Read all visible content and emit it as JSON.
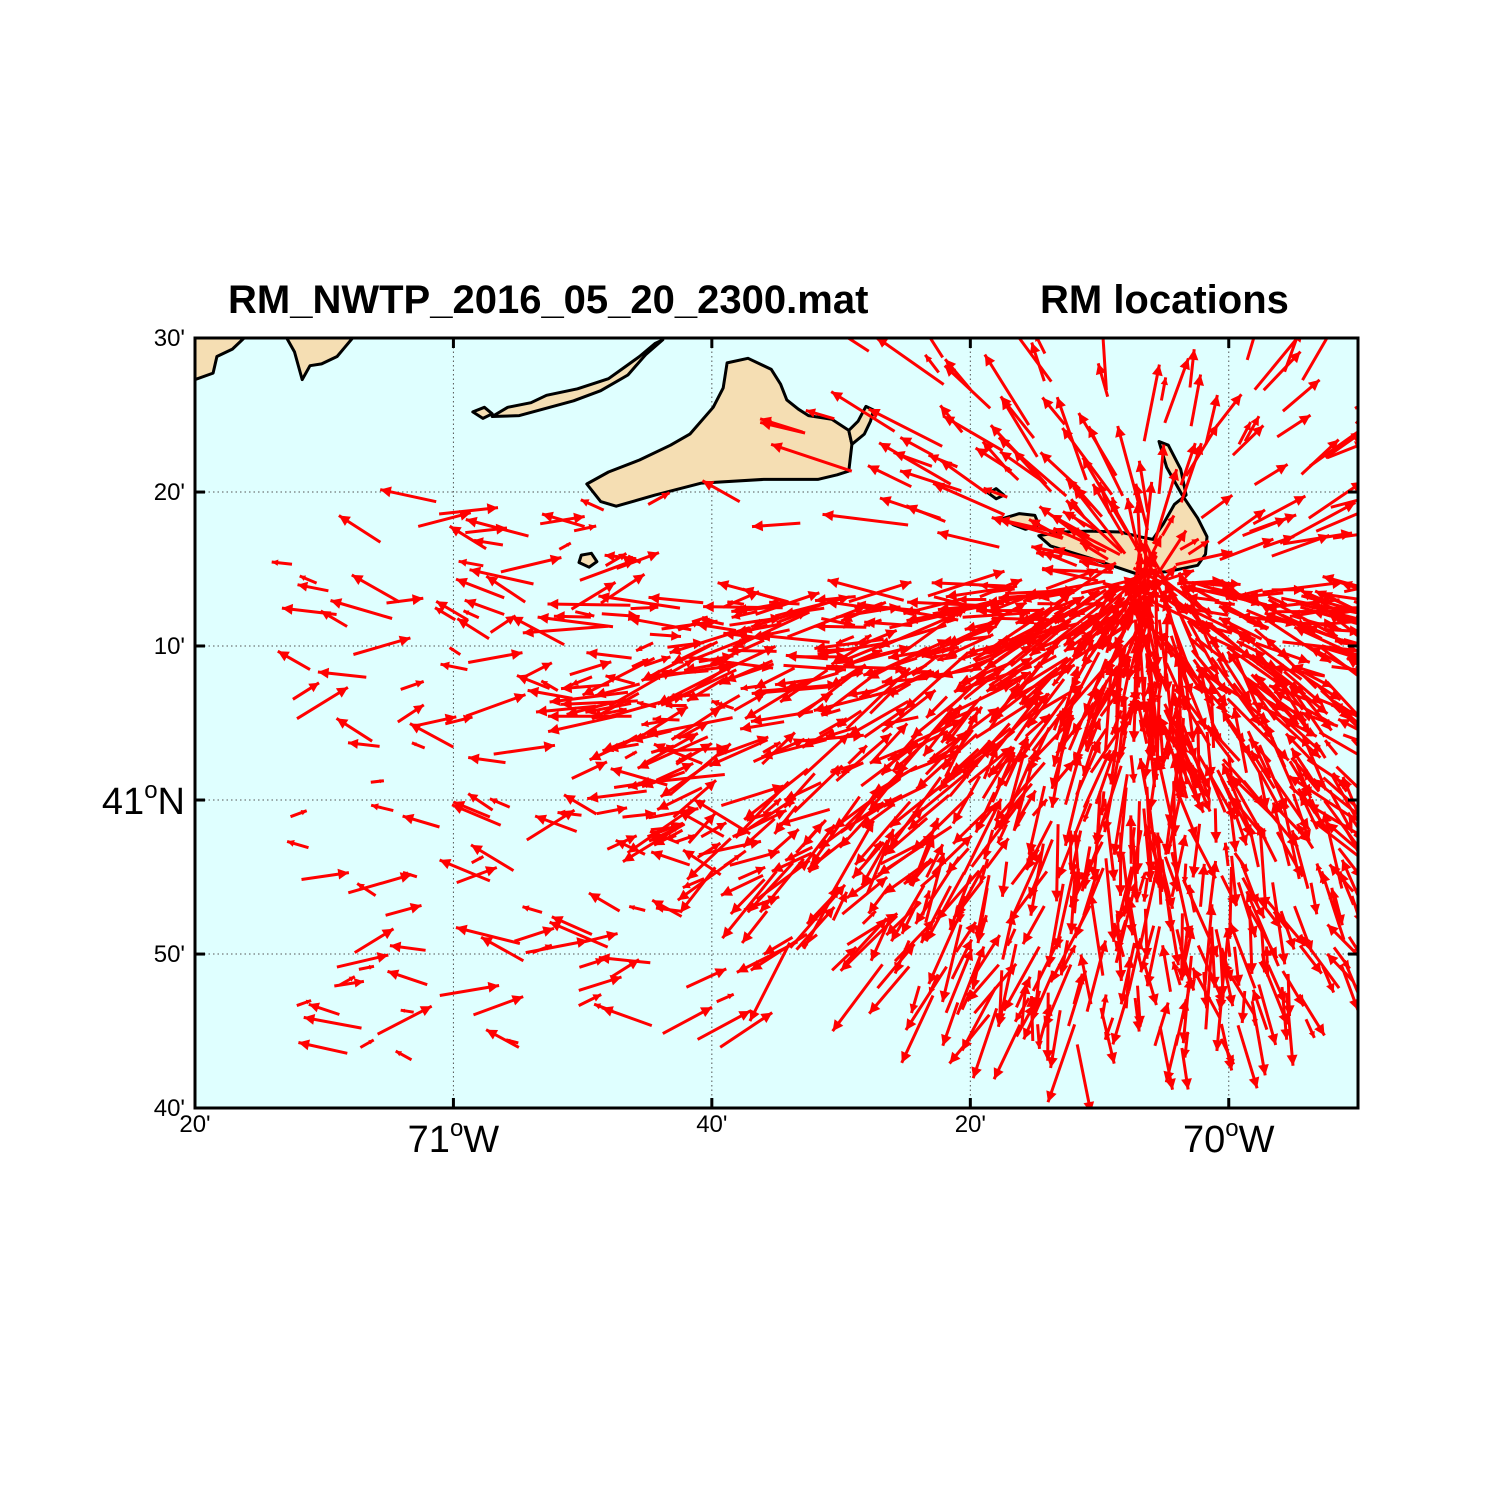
{
  "title_left": "RM_NWTP_2016_05_20_2300.mat",
  "title_right": "RM locations",
  "colors": {
    "ocean": "#dfffff",
    "land": "#f5deb3",
    "coast": "#000000",
    "vectors": "#ff0000",
    "grid": "#555555"
  },
  "map": {
    "lon_range": [
      -71.3333,
      -69.8333
    ],
    "lat_range": [
      40.6667,
      41.5
    ],
    "grid_lons": [
      -71.0,
      -70.6667,
      -70.3333,
      -70.0
    ],
    "grid_lats": [
      40.8333,
      41.0,
      41.1667,
      41.3333
    ],
    "radar_site": {
      "lon": -70.104,
      "lat": 41.24
    }
  },
  "y_ticks": [
    {
      "lat": 41.5,
      "label": "30'",
      "sup": "",
      "suffix": "",
      "major": false
    },
    {
      "lat": 41.3333,
      "label": "20'",
      "sup": "",
      "suffix": "",
      "major": false
    },
    {
      "lat": 41.1667,
      "label": "10'",
      "sup": "",
      "suffix": "",
      "major": false
    },
    {
      "lat": 41.0,
      "label": "41",
      "sup": "o",
      "suffix": "N",
      "major": true
    },
    {
      "lat": 40.8333,
      "label": "50'",
      "sup": "",
      "suffix": "",
      "major": false
    },
    {
      "lat": 40.6667,
      "label": "40'",
      "sup": "",
      "suffix": "",
      "major": false
    }
  ],
  "x_ticks": [
    {
      "lon": -71.3333,
      "label": "20'",
      "sup": "",
      "suffix": "",
      "major": false
    },
    {
      "lon": -71.0,
      "label": "71",
      "sup": "o",
      "suffix": "W",
      "major": true
    },
    {
      "lon": -70.6667,
      "label": "40'",
      "sup": "",
      "suffix": "",
      "major": false
    },
    {
      "lon": -70.3333,
      "label": "20'",
      "sup": "",
      "suffix": "",
      "major": false
    },
    {
      "lon": -70.0,
      "label": "70",
      "sup": "o",
      "suffix": "W",
      "major": true
    }
  ],
  "land_polygons": [
    {
      "name": "marthas-vineyard",
      "coords": [
        [
          -70.828,
          41.342
        ],
        [
          -70.8,
          41.355
        ],
        [
          -70.76,
          41.368
        ],
        [
          -70.72,
          41.384
        ],
        [
          -70.695,
          41.396
        ],
        [
          -70.665,
          41.425
        ],
        [
          -70.652,
          41.446
        ],
        [
          -70.647,
          41.473
        ],
        [
          -70.62,
          41.478
        ],
        [
          -70.59,
          41.466
        ],
        [
          -70.578,
          41.45
        ],
        [
          -70.57,
          41.433
        ],
        [
          -70.555,
          41.423
        ],
        [
          -70.542,
          41.416
        ],
        [
          -70.512,
          41.412
        ],
        [
          -70.49,
          41.4
        ],
        [
          -70.486,
          41.385
        ],
        [
          -70.49,
          41.356
        ],
        [
          -70.505,
          41.352
        ],
        [
          -70.53,
          41.347
        ],
        [
          -70.6,
          41.347
        ],
        [
          -70.68,
          41.343
        ],
        [
          -70.74,
          41.33
        ],
        [
          -70.79,
          41.318
        ],
        [
          -70.81,
          41.323
        ],
        [
          -70.828,
          41.342
        ]
      ]
    },
    {
      "name": "chappaquiddick",
      "coords": [
        [
          -70.486,
          41.385
        ],
        [
          -70.47,
          41.396
        ],
        [
          -70.462,
          41.41
        ],
        [
          -70.458,
          41.422
        ],
        [
          -70.468,
          41.426
        ],
        [
          -70.478,
          41.41
        ],
        [
          -70.49,
          41.4
        ],
        [
          -70.486,
          41.385
        ]
      ]
    },
    {
      "name": "noman-island",
      "coords": [
        [
          -70.835,
          41.265
        ],
        [
          -70.822,
          41.267
        ],
        [
          -70.815,
          41.258
        ],
        [
          -70.825,
          41.252
        ],
        [
          -70.838,
          41.257
        ],
        [
          -70.835,
          41.265
        ]
      ]
    },
    {
      "name": "elizabeth-islands",
      "coords": [
        [
          -70.95,
          41.415
        ],
        [
          -70.93,
          41.425
        ],
        [
          -70.9,
          41.43
        ],
        [
          -70.88,
          41.438
        ],
        [
          -70.84,
          41.445
        ],
        [
          -70.8,
          41.456
        ],
        [
          -70.78,
          41.468
        ],
        [
          -70.76,
          41.48
        ],
        [
          -70.74,
          41.494
        ],
        [
          -70.73,
          41.498
        ],
        [
          -70.752,
          41.482
        ],
        [
          -70.775,
          41.46
        ],
        [
          -70.81,
          41.443
        ],
        [
          -70.845,
          41.432
        ],
        [
          -70.88,
          41.424
        ],
        [
          -70.915,
          41.416
        ],
        [
          -70.95,
          41.415
        ]
      ]
    },
    {
      "name": "cuttyhunk",
      "coords": [
        [
          -70.975,
          41.42
        ],
        [
          -70.96,
          41.425
        ],
        [
          -70.95,
          41.418
        ],
        [
          -70.962,
          41.413
        ],
        [
          -70.975,
          41.42
        ]
      ]
    },
    {
      "name": "mainland-west",
      "coords": [
        [
          -71.3333,
          41.5
        ],
        [
          -71.3333,
          41.455
        ],
        [
          -71.31,
          41.462
        ],
        [
          -71.305,
          41.48
        ],
        [
          -71.285,
          41.488
        ],
        [
          -71.27,
          41.5
        ]
      ]
    },
    {
      "name": "mainland-mid",
      "coords": [
        [
          -71.215,
          41.5
        ],
        [
          -71.205,
          41.485
        ],
        [
          -71.195,
          41.455
        ],
        [
          -71.185,
          41.47
        ],
        [
          -71.17,
          41.472
        ],
        [
          -71.15,
          41.48
        ],
        [
          -71.14,
          41.49
        ],
        [
          -71.13,
          41.5
        ]
      ]
    },
    {
      "name": "tuckernuck",
      "coords": [
        [
          -70.29,
          41.305
        ],
        [
          -70.27,
          41.31
        ],
        [
          -70.25,
          41.308
        ],
        [
          -70.245,
          41.298
        ],
        [
          -70.262,
          41.293
        ],
        [
          -70.278,
          41.298
        ],
        [
          -70.29,
          41.305
        ]
      ]
    },
    {
      "name": "muskeget",
      "coords": [
        [
          -70.31,
          41.332
        ],
        [
          -70.3,
          41.337
        ],
        [
          -70.29,
          41.33
        ],
        [
          -70.3,
          41.326
        ],
        [
          -70.31,
          41.332
        ]
      ]
    },
    {
      "name": "nantucket",
      "coords": [
        [
          -70.245,
          41.286
        ],
        [
          -70.23,
          41.275
        ],
        [
          -70.18,
          41.262
        ],
        [
          -70.12,
          41.245
        ],
        [
          -70.08,
          41.247
        ],
        [
          -70.04,
          41.254
        ],
        [
          -70.03,
          41.266
        ],
        [
          -70.028,
          41.285
        ],
        [
          -70.04,
          41.305
        ],
        [
          -70.06,
          41.33
        ],
        [
          -70.08,
          41.36
        ],
        [
          -70.09,
          41.388
        ],
        [
          -70.078,
          41.384
        ],
        [
          -70.062,
          41.358
        ],
        [
          -70.055,
          41.33
        ],
        [
          -70.07,
          41.32
        ],
        [
          -70.085,
          41.298
        ],
        [
          -70.098,
          41.282
        ],
        [
          -70.115,
          41.285
        ],
        [
          -70.14,
          41.29
        ],
        [
          -70.18,
          41.291
        ],
        [
          -70.215,
          41.29
        ],
        [
          -70.245,
          41.286
        ]
      ]
    }
  ]
}
